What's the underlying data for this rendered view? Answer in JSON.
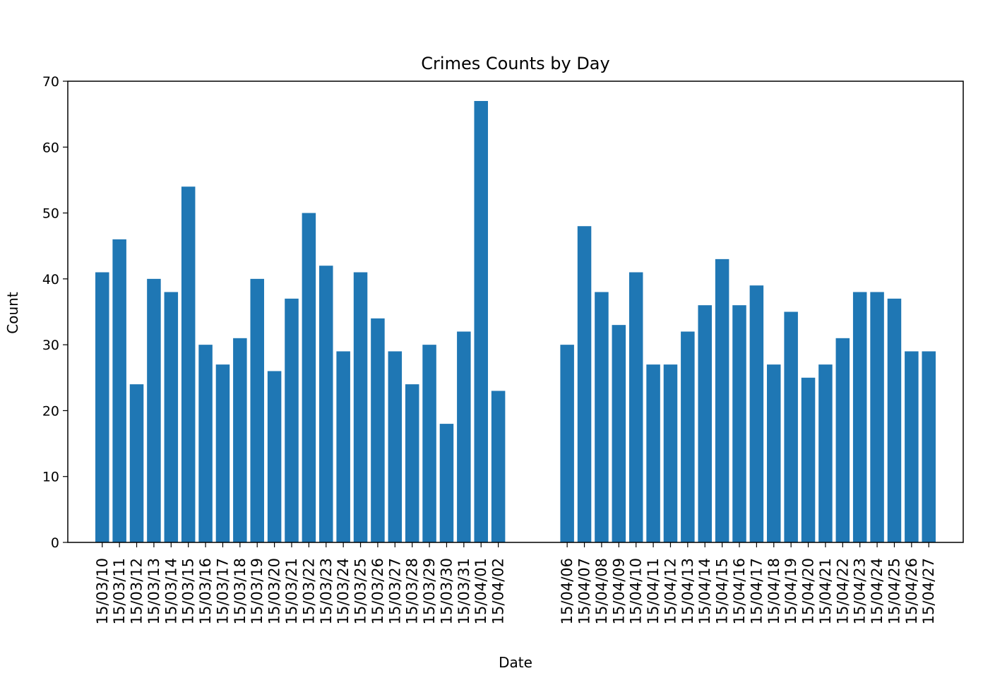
{
  "chart_data": {
    "type": "bar",
    "title": "Crimes Counts by Day",
    "xlabel": "Date",
    "ylabel": "Count",
    "ylim": [
      0,
      70
    ],
    "yticks": [
      0,
      10,
      20,
      30,
      40,
      50,
      60,
      70
    ],
    "grid": false,
    "bar_color": "#1f77b4",
    "x_axis_type": "date",
    "x_date_range": [
      "2015-03-08",
      "2015-04-29"
    ],
    "points": [
      {
        "date": "2015-03-10",
        "label": "15/03/10",
        "value": 41
      },
      {
        "date": "2015-03-11",
        "label": "15/03/11",
        "value": 46
      },
      {
        "date": "2015-03-12",
        "label": "15/03/12",
        "value": 24
      },
      {
        "date": "2015-03-13",
        "label": "15/03/13",
        "value": 40
      },
      {
        "date": "2015-03-14",
        "label": "15/03/14",
        "value": 38
      },
      {
        "date": "2015-03-15",
        "label": "15/03/15",
        "value": 54
      },
      {
        "date": "2015-03-16",
        "label": "15/03/16",
        "value": 30
      },
      {
        "date": "2015-03-17",
        "label": "15/03/17",
        "value": 27
      },
      {
        "date": "2015-03-18",
        "label": "15/03/18",
        "value": 31
      },
      {
        "date": "2015-03-19",
        "label": "15/03/19",
        "value": 40
      },
      {
        "date": "2015-03-20",
        "label": "15/03/20",
        "value": 26
      },
      {
        "date": "2015-03-21",
        "label": "15/03/21",
        "value": 37
      },
      {
        "date": "2015-03-22",
        "label": "15/03/22",
        "value": 50
      },
      {
        "date": "2015-03-23",
        "label": "15/03/23",
        "value": 42
      },
      {
        "date": "2015-03-24",
        "label": "15/03/24",
        "value": 29
      },
      {
        "date": "2015-03-25",
        "label": "15/03/25",
        "value": 41
      },
      {
        "date": "2015-03-26",
        "label": "15/03/26",
        "value": 34
      },
      {
        "date": "2015-03-27",
        "label": "15/03/27",
        "value": 29
      },
      {
        "date": "2015-03-28",
        "label": "15/03/28",
        "value": 24
      },
      {
        "date": "2015-03-29",
        "label": "15/03/29",
        "value": 30
      },
      {
        "date": "2015-03-30",
        "label": "15/03/30",
        "value": 18
      },
      {
        "date": "2015-03-31",
        "label": "15/03/31",
        "value": 32
      },
      {
        "date": "2015-04-01",
        "label": "15/04/01",
        "value": 67
      },
      {
        "date": "2015-04-02",
        "label": "15/04/02",
        "value": 23
      },
      {
        "date": "2015-04-06",
        "label": "15/04/06",
        "value": 30
      },
      {
        "date": "2015-04-07",
        "label": "15/04/07",
        "value": 48
      },
      {
        "date": "2015-04-08",
        "label": "15/04/08",
        "value": 38
      },
      {
        "date": "2015-04-09",
        "label": "15/04/09",
        "value": 33
      },
      {
        "date": "2015-04-10",
        "label": "15/04/10",
        "value": 41
      },
      {
        "date": "2015-04-11",
        "label": "15/04/11",
        "value": 27
      },
      {
        "date": "2015-04-12",
        "label": "15/04/12",
        "value": 27
      },
      {
        "date": "2015-04-13",
        "label": "15/04/13",
        "value": 32
      },
      {
        "date": "2015-04-14",
        "label": "15/04/14",
        "value": 36
      },
      {
        "date": "2015-04-15",
        "label": "15/04/15",
        "value": 43
      },
      {
        "date": "2015-04-16",
        "label": "15/04/16",
        "value": 36
      },
      {
        "date": "2015-04-17",
        "label": "15/04/17",
        "value": 39
      },
      {
        "date": "2015-04-18",
        "label": "15/04/18",
        "value": 27
      },
      {
        "date": "2015-04-19",
        "label": "15/04/19",
        "value": 35
      },
      {
        "date": "2015-04-20",
        "label": "15/04/20",
        "value": 25
      },
      {
        "date": "2015-04-21",
        "label": "15/04/21",
        "value": 27
      },
      {
        "date": "2015-04-22",
        "label": "15/04/22",
        "value": 31
      },
      {
        "date": "2015-04-23",
        "label": "15/04/23",
        "value": 38
      },
      {
        "date": "2015-04-24",
        "label": "15/04/24",
        "value": 38
      },
      {
        "date": "2015-04-25",
        "label": "15/04/25",
        "value": 37
      },
      {
        "date": "2015-04-26",
        "label": "15/04/26",
        "value": 29
      },
      {
        "date": "2015-04-27",
        "label": "15/04/27",
        "value": 29
      }
    ]
  }
}
